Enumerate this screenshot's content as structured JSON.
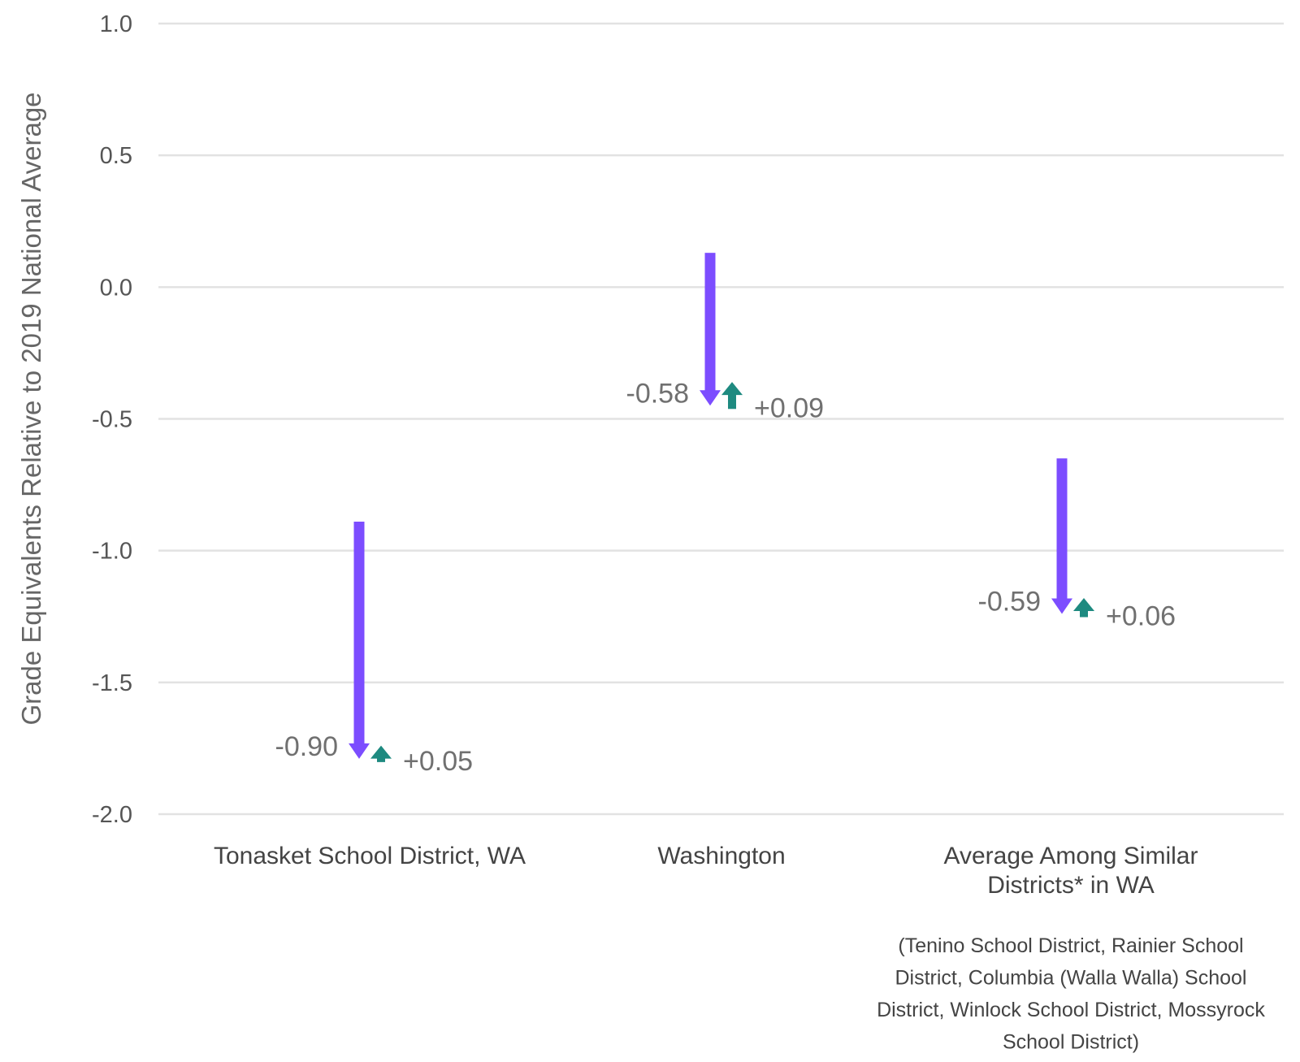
{
  "chart_data": {
    "type": "arrow",
    "ylabel": "Grade Equivalents Relative to 2019 National Average",
    "xlabel": "",
    "ylim": [
      -2.0,
      1.0
    ],
    "yticks": [
      1.0,
      0.5,
      0.0,
      -0.5,
      -1.0,
      -1.5,
      -2.0
    ],
    "ytick_labels": [
      "1.0",
      "0.5",
      "0.0",
      "-0.5",
      "-1.0",
      "-1.5",
      "-2.0"
    ],
    "grid": true,
    "colors": {
      "decline": "#7c4dff",
      "recovery": "#1e8a80",
      "grid": "#e2e2e2"
    },
    "categories": [
      {
        "label_lines": [
          "Tonasket School District, WA"
        ],
        "start": -0.89,
        "end": -1.79,
        "decline_label": "-0.90",
        "recovery_end": -1.74,
        "recovery_label": "+0.05"
      },
      {
        "label_lines": [
          "Washington"
        ],
        "start": 0.13,
        "end": -0.45,
        "decline_label": "-0.58",
        "recovery_end": -0.36,
        "recovery_label": "+0.09"
      },
      {
        "label_lines": [
          "Average Among Similar",
          "Districts* in WA"
        ],
        "start": -0.65,
        "end": -1.24,
        "decline_label": "-0.59",
        "recovery_end": -1.18,
        "recovery_label": "+0.06",
        "note_lines": [
          "(Tenino School District, Rainier School",
          "District, Columbia (Walla Walla) School",
          "District, Winlock School District, Mossyrock",
          "School District)"
        ]
      }
    ]
  }
}
